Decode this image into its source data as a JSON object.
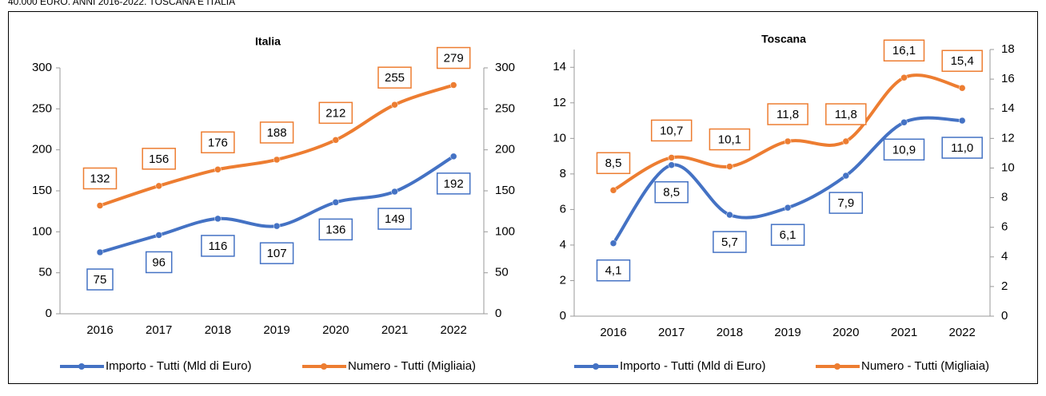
{
  "caption": "40.000 EURO. ANNI 2016-2022. TOSCANA E ITALIA",
  "chart_data": [
    {
      "type": "line",
      "title": "Italia",
      "categories": [
        "2016",
        "2017",
        "2018",
        "2019",
        "2020",
        "2021",
        "2022"
      ],
      "series": [
        {
          "name": "Importo - Tutti (Mld di Euro)",
          "color": "#4472c4",
          "values": [
            75,
            96,
            116,
            107,
            136,
            149,
            192
          ]
        },
        {
          "name": "Numero - Tutti (Migliaia)",
          "color": "#ed7d31",
          "axis": "y2",
          "values": [
            132,
            156,
            176,
            188,
            212,
            255,
            279
          ]
        }
      ],
      "ylim": [
        0,
        300
      ],
      "yticks": [
        0,
        50,
        100,
        150,
        200,
        250,
        300
      ],
      "y2lim": [
        0,
        300
      ],
      "y2ticks": [
        0,
        50,
        100,
        150,
        200,
        250,
        300
      ],
      "legend": "bottom"
    },
    {
      "type": "line",
      "title": "Toscana",
      "categories": [
        "2016",
        "2017",
        "2018",
        "2019",
        "2020",
        "2021",
        "2022"
      ],
      "series": [
        {
          "name": "Importo - Tutti (Mld di Euro)",
          "color": "#4472c4",
          "values": [
            4.1,
            8.5,
            5.7,
            6.1,
            7.9,
            10.9,
            11.0
          ],
          "value_labels": [
            "4,1",
            "8,5",
            "5,7",
            "6,1",
            "7,9",
            "10,9",
            "11,0"
          ]
        },
        {
          "name": "Numero - Tutti (Migliaia)",
          "color": "#ed7d31",
          "axis": "y2",
          "values": [
            8.5,
            10.7,
            10.1,
            11.8,
            11.8,
            16.1,
            15.4
          ],
          "value_labels": [
            "8,5",
            "10,7",
            "10,1",
            "11,8",
            "11,8",
            "16,1",
            "15,4"
          ]
        }
      ],
      "ylim": [
        0,
        15
      ],
      "yticks": [
        0,
        2,
        4,
        6,
        8,
        10,
        12,
        14
      ],
      "y2lim": [
        0,
        18
      ],
      "y2ticks": [
        0,
        2,
        4,
        6,
        8,
        10,
        12,
        14,
        16,
        18
      ],
      "legend": "bottom"
    }
  ]
}
